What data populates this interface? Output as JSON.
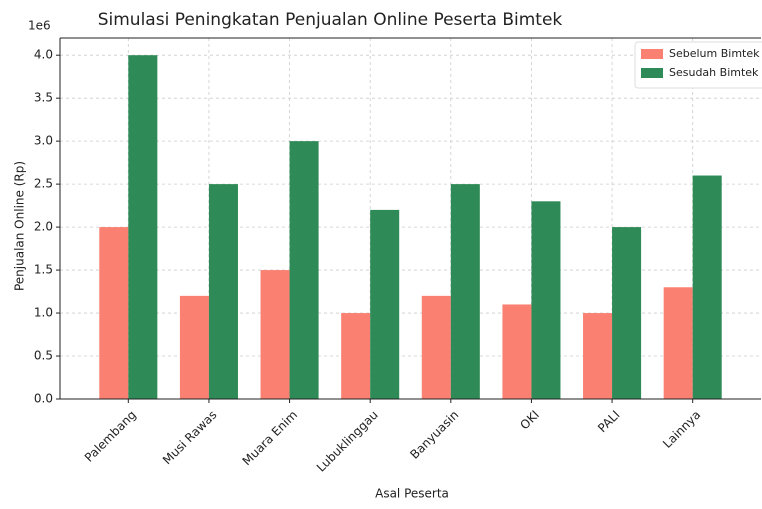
{
  "chart_data": {
    "type": "bar",
    "title": "Simulasi Peningkatan Penjualan Online Peserta Bimtek",
    "x_label": "Asal Peserta",
    "y_label": "Penjualan Online (Rp)",
    "y_offset_label": "1e6",
    "categories": [
      "Palembang",
      "Musi Rawas",
      "Muara Enim",
      "Lubuklinggau",
      "Banyuasin",
      "OKI",
      "PALI",
      "Lainnya"
    ],
    "series": [
      {
        "name": "Sebelum Bimtek",
        "color": "#fa8072",
        "values": [
          2000000,
          1200000,
          1500000,
          1000000,
          1200000,
          1100000,
          1000000,
          1300000
        ]
      },
      {
        "name": "Sesudah Bimtek",
        "color": "#2e8b57",
        "values": [
          4000000,
          2500000,
          3000000,
          2200000,
          2500000,
          2300000,
          2000000,
          2600000
        ]
      }
    ],
    "ylim": [
      0,
      4200000
    ],
    "yticks": [
      {
        "value": 0,
        "label": "0.0"
      },
      {
        "value": 500000,
        "label": "0.5"
      },
      {
        "value": 1000000,
        "label": "1.0"
      },
      {
        "value": 1500000,
        "label": "1.5"
      },
      {
        "value": 2000000,
        "label": "2.0"
      },
      {
        "value": 2500000,
        "label": "2.5"
      },
      {
        "value": 3000000,
        "label": "3.0"
      },
      {
        "value": 3500000,
        "label": "3.5"
      },
      {
        "value": 4000000,
        "label": "4.0"
      }
    ],
    "grid": true,
    "legend": "upper right"
  }
}
